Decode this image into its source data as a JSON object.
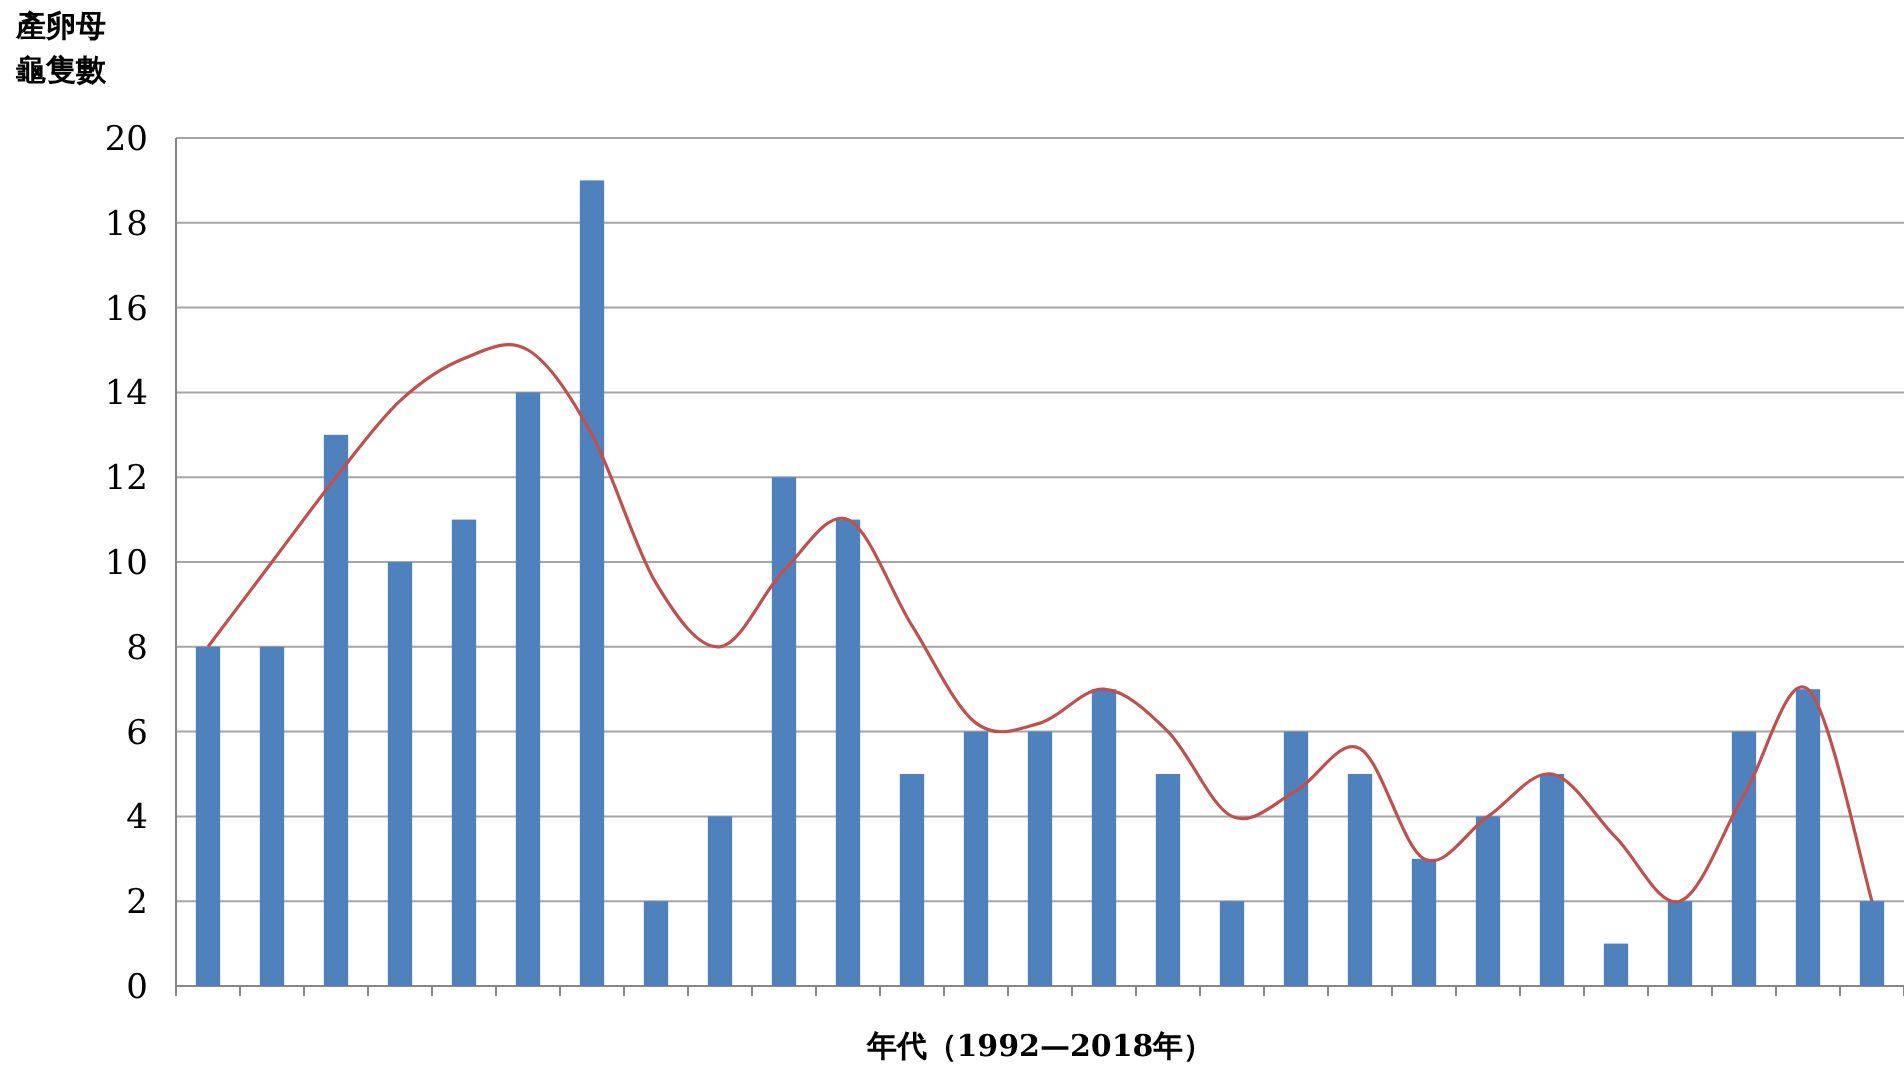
{
  "chart_data": {
    "type": "bar",
    "ylabel": "產卵母龜隻數",
    "xlabel": "年代（1992—2018年）",
    "categories": [
      null,
      null,
      null,
      null,
      null,
      null,
      null,
      null,
      null,
      null,
      null,
      null,
      null,
      null,
      null,
      null,
      null,
      null,
      null,
      null,
      null,
      null,
      null,
      null,
      null,
      null,
      null
    ],
    "series": [
      {
        "color": "#4f81bd",
        "values": [
          8,
          8,
          13,
          10,
          11,
          14,
          19,
          2,
          4,
          12,
          11,
          5,
          6,
          6,
          7,
          5,
          2,
          6,
          5,
          3,
          4,
          5,
          1,
          2,
          6,
          7,
          2
        ]
      },
      {
        "type": "line",
        "color": "#c0504d",
        "values": [
          8,
          10,
          12,
          13.8,
          14.8,
          15,
          13,
          9.5,
          8,
          9.8,
          11,
          8.5,
          6.2,
          6.2,
          7,
          6,
          4,
          4.6,
          5.6,
          3,
          4,
          5,
          3.5,
          2,
          4.5,
          7,
          2
        ]
      }
    ],
    "ylim": [
      0,
      20
    ],
    "yticks": [
      0,
      2,
      4,
      6,
      8,
      10,
      12,
      14,
      16,
      18,
      20
    ],
    "grid": "y",
    "marker": "none",
    "line_style": "solid"
  }
}
